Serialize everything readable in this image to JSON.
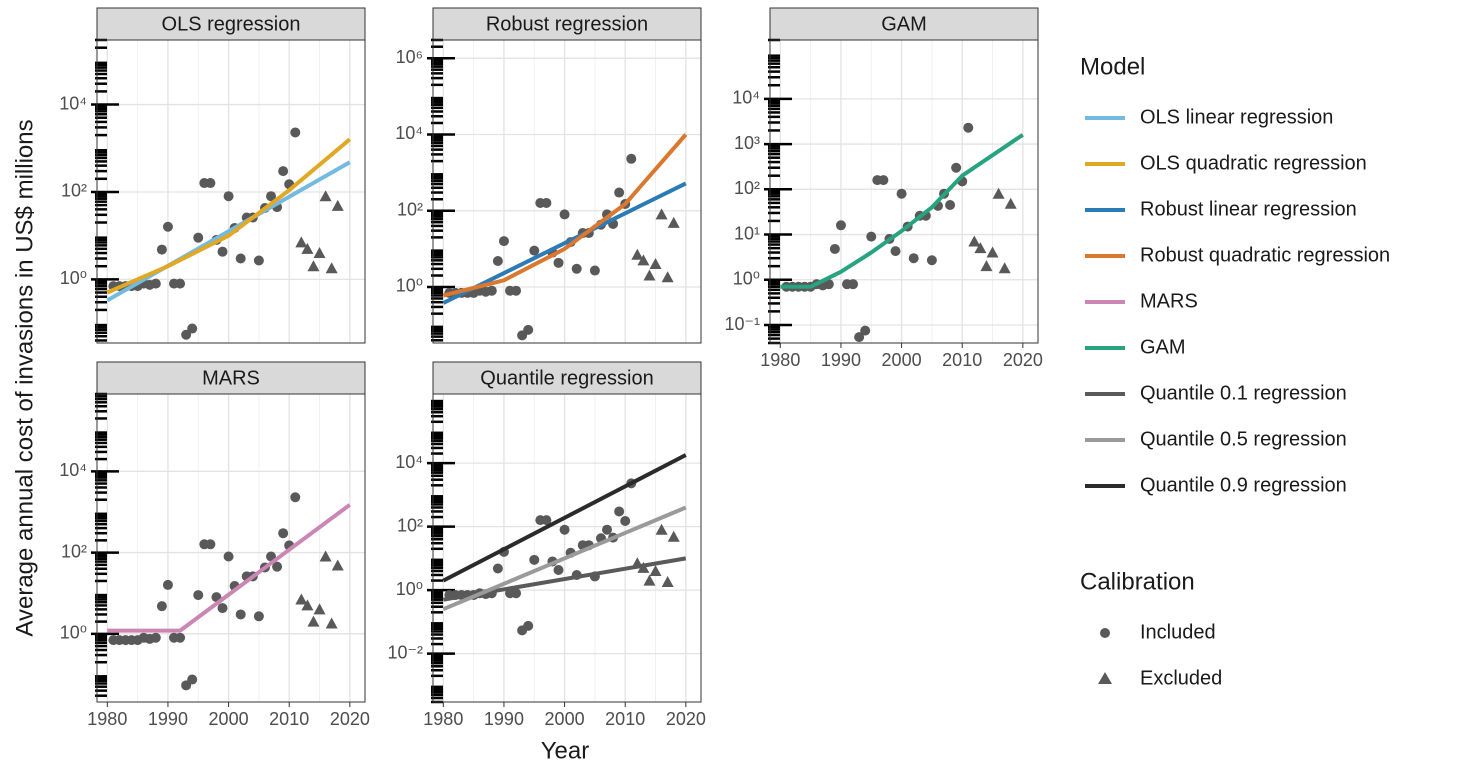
{
  "chart_data": {
    "type": "facets",
    "x_label": "Year",
    "y_label": "Average annual cost of invasions in US$ millions",
    "log_y": true,
    "grid": true,
    "xlim": [
      1978.3,
      2022.5
    ],
    "xticks": [
      1980,
      1990,
      2000,
      2010,
      2020
    ],
    "legend_title": "Model",
    "series_legend_title": "Calibration",
    "series": [
      {
        "name": "Included",
        "marker": "circle",
        "color": "#595959",
        "x": [
          1981,
          1982,
          1983,
          1984,
          1985,
          1986,
          1987,
          1988,
          1989,
          1990,
          1991,
          1992,
          1993,
          1994,
          1995,
          1996,
          1997,
          1998,
          1999,
          2000,
          2001,
          2002,
          2003,
          2004,
          2005,
          2006,
          2007,
          2008,
          2009,
          2010,
          2011
        ],
        "values": [
          0.7,
          0.7,
          0.7,
          0.7,
          0.7,
          0.8,
          0.75,
          0.8,
          4.8,
          16,
          0.8,
          0.8,
          0.054,
          0.075,
          9,
          160,
          160,
          8,
          4.3,
          80,
          15,
          3,
          26,
          26,
          2.7,
          43,
          80,
          45,
          300,
          150,
          2300
        ]
      },
      {
        "name": "Excluded",
        "marker": "triangle",
        "color": "#595959",
        "x": [
          2012,
          2013,
          2014,
          2015,
          2016,
          2017,
          2018
        ],
        "values": [
          7,
          5,
          2,
          4,
          80,
          1.8,
          48
        ]
      }
    ],
    "panels": [
      {
        "title": "OLS regression",
        "type": "line",
        "ylim": [
          0.035,
          300000
        ],
        "yticks": [
          {
            "value": 1,
            "label": "10⁰"
          },
          {
            "value": 100,
            "label": "10²"
          },
          {
            "value": 10000,
            "label": "10⁴"
          }
        ],
        "fits": [
          {
            "name": "OLS linear regression",
            "color": "#74b9e0",
            "x": [
              1980,
              2020
            ],
            "values": [
              0.33,
              480
            ]
          },
          {
            "name": "OLS quadratic regression",
            "color": "#e0a825",
            "x": [
              1980,
              1990,
              2000,
              2010,
              2020
            ],
            "values": [
              0.5,
              2,
              10,
              110,
              1600
            ]
          }
        ]
      },
      {
        "title": "Robust regression",
        "type": "line",
        "ylim": [
          0.034,
          3000000
        ],
        "yticks": [
          {
            "value": 1,
            "label": "10⁰"
          },
          {
            "value": 100,
            "label": "10²"
          },
          {
            "value": 10000,
            "label": "10⁴"
          },
          {
            "value": 1000000,
            "label": "10⁶"
          }
        ],
        "fits": [
          {
            "name": "Robust linear regression",
            "color": "#2b7bb6",
            "x": [
              1980,
              2020
            ],
            "values": [
              0.38,
              520
            ]
          },
          {
            "name": "Robust quadratic regression",
            "color": "#d9782e",
            "x": [
              1980,
              1990,
              2000,
              2010,
              2020
            ],
            "values": [
              0.6,
              1.5,
              10,
              150,
              10000
            ]
          }
        ]
      },
      {
        "title": "MARS",
        "type": "line",
        "ylim": [
          0.021,
          800000
        ],
        "yticks": [
          {
            "value": 1,
            "label": "10⁰"
          },
          {
            "value": 100,
            "label": "10²"
          },
          {
            "value": 10000,
            "label": "10⁴"
          }
        ],
        "fits": [
          {
            "name": "MARS",
            "color": "#cc86b4",
            "x": [
              1980,
              1992,
              2020
            ],
            "values": [
              1.2,
              1.2,
              1500
            ]
          }
        ]
      },
      {
        "title": "GAM",
        "type": "line",
        "ylim": [
          0.04,
          200000
        ],
        "yticks": [
          {
            "value": 0.1,
            "label": "10⁻¹"
          },
          {
            "value": 1,
            "label": "10⁰"
          },
          {
            "value": 10,
            "label": "10¹"
          },
          {
            "value": 100,
            "label": "10²"
          },
          {
            "value": 1000,
            "label": "10³"
          },
          {
            "value": 10000,
            "label": "10⁴"
          }
        ],
        "fits": [
          {
            "name": "GAM",
            "color": "#27a381",
            "x": [
              1980,
              1985,
              1990,
              1995,
              2000,
              2005,
              2010,
              2020
            ],
            "values": [
              0.7,
              0.7,
              1.5,
              4,
              12,
              40,
              200,
              1600
            ]
          }
        ]
      },
      {
        "title": "Quantile regression",
        "type": "line",
        "ylim": [
          0.0003,
          1500000
        ],
        "yticks": [
          {
            "value": 0.01,
            "label": "10⁻²"
          },
          {
            "value": 1,
            "label": "10⁰"
          },
          {
            "value": 100,
            "label": "10²"
          },
          {
            "value": 10000,
            "label": "10⁴"
          }
        ],
        "fits": [
          {
            "name": "Quantile 0.1 regression",
            "color": "#5a5a5a",
            "x": [
              1980,
              2020
            ],
            "values": [
              0.5,
              10
            ]
          },
          {
            "name": "Quantile 0.5 regression",
            "color": "#9a9a9a",
            "x": [
              1980,
              2020
            ],
            "values": [
              0.25,
              400
            ]
          },
          {
            "name": "Quantile 0.9 regression",
            "color": "#2b2b2b",
            "x": [
              1980,
              2020
            ],
            "values": [
              2,
              18000
            ]
          }
        ]
      }
    ]
  }
}
